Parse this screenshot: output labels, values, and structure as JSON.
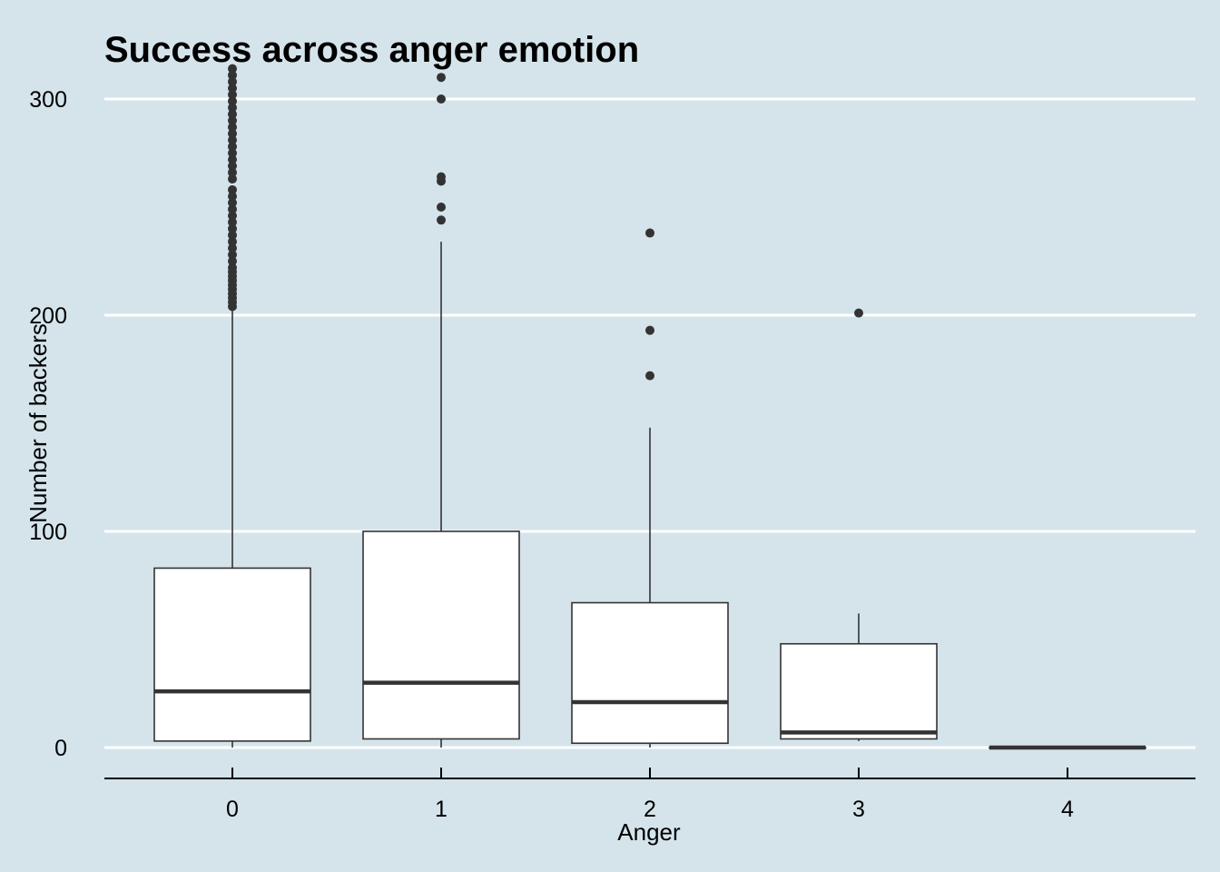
{
  "chart_data": {
    "type": "boxplot",
    "title": "Success across anger emotion",
    "xlabel": "Anger",
    "ylabel": "Number of backers",
    "ylim": [
      -14,
      315
    ],
    "yticks": [
      0,
      100,
      200,
      300
    ],
    "ytick_labels": [
      "0",
      "100",
      "200",
      "300"
    ],
    "grid": "horizontal",
    "background": "#d5e4eb",
    "box_fill": "#ffffff",
    "line_color": "#333333",
    "categories": [
      "0",
      "1",
      "2",
      "3",
      "4"
    ],
    "boxes": [
      {
        "category": "0",
        "min": 0,
        "q1": 3,
        "median": 26,
        "q3": 83,
        "max": 202,
        "outliers": [
          204,
          206,
          208,
          210,
          212,
          214,
          216,
          218,
          220,
          222,
          225,
          228,
          231,
          234,
          237,
          240,
          243,
          246,
          249,
          252,
          255,
          258,
          263,
          266,
          269,
          272,
          275,
          278,
          281,
          284,
          287,
          290,
          293,
          296,
          299,
          302,
          305,
          308,
          311,
          314
        ]
      },
      {
        "category": "1",
        "min": 0,
        "q1": 4,
        "median": 30,
        "q3": 100,
        "max": 234,
        "outliers": [
          244,
          250,
          262,
          264,
          300,
          310
        ]
      },
      {
        "category": "2",
        "min": 0,
        "q1": 2,
        "median": 21,
        "q3": 67,
        "max": 148,
        "outliers": [
          172,
          193,
          238
        ]
      },
      {
        "category": "3",
        "min": 3,
        "q1": 4,
        "median": 7,
        "q3": 48,
        "max": 62,
        "outliers": [
          201
        ]
      },
      {
        "category": "4",
        "min": 0,
        "q1": 0,
        "median": 0,
        "q3": 0,
        "max": 0,
        "outliers": []
      }
    ]
  }
}
